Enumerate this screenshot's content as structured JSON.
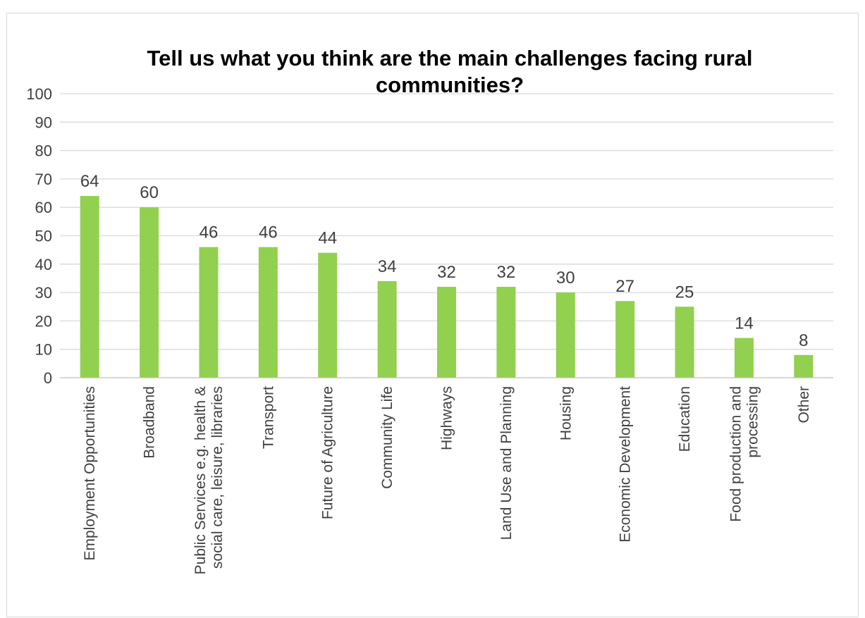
{
  "chart_data": {
    "type": "bar",
    "title": "Tell us what you think are the main challenges facing rural communities?",
    "title_lines": [
      "Tell us what you think are the main challenges facing rural",
      "communities?"
    ],
    "categories": [
      "Employment Opportunities",
      "Broadband",
      "Public Services e.g. health & social care, leisure, libraries",
      "Transport",
      "Future of Agriculture",
      "Community Life",
      "Highways",
      "Land Use and Planning",
      "Housing",
      "Economic Development",
      "Education",
      "Food production and processing",
      "Other"
    ],
    "category_lines": [
      [
        "Employment Opportunities"
      ],
      [
        "Broadband"
      ],
      [
        "Public Services e.g. health &",
        "social care, leisure, libraries"
      ],
      [
        "Transport"
      ],
      [
        "Future of Agriculture"
      ],
      [
        "Community Life"
      ],
      [
        "Highways"
      ],
      [
        "Land Use and Planning"
      ],
      [
        "Housing"
      ],
      [
        "Economic Development"
      ],
      [
        "Education"
      ],
      [
        "Food production and",
        "processing"
      ],
      [
        "Other"
      ]
    ],
    "values": [
      64,
      60,
      46,
      46,
      44,
      34,
      32,
      32,
      30,
      27,
      25,
      14,
      8
    ],
    "ylim": [
      0,
      100
    ],
    "yticks": [
      0,
      10,
      20,
      30,
      40,
      50,
      60,
      70,
      80,
      90,
      100
    ],
    "xlabel": "",
    "ylabel": "",
    "grid": true,
    "legend": "none",
    "bar_color": "#92d050"
  }
}
